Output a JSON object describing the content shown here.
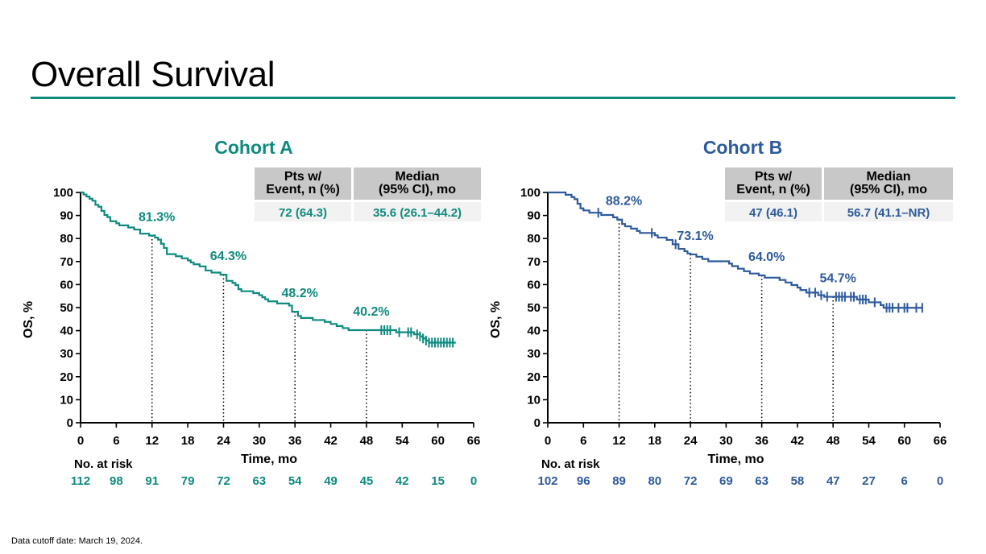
{
  "slide": {
    "title": "Overall Survival",
    "footnote": "Data cutoff date: March 19, 2024.",
    "accent_color": "#0e8a7e"
  },
  "chart_data": [
    {
      "type": "line",
      "subtype": "kaplan-meier",
      "title": "Cohort A",
      "color": "#0e8a7e",
      "xlabel": "Time, mo",
      "ylabel": "OS, %",
      "xlim": [
        0,
        66
      ],
      "ylim": [
        0,
        100
      ],
      "xticks": [
        0,
        6,
        12,
        18,
        24,
        30,
        36,
        42,
        48,
        54,
        60,
        66
      ],
      "yticks": [
        0,
        10,
        20,
        30,
        40,
        50,
        60,
        70,
        80,
        90,
        100
      ],
      "grid": false,
      "table": {
        "headers": [
          "Pts w/\nEvent, n (%)",
          "Median\n(95% CI), mo"
        ],
        "values": [
          "72 (64.3)",
          "35.6 (26.1–44.2)"
        ]
      },
      "landmarks": [
        {
          "x": 12,
          "y": 81.3,
          "label": "81.3%"
        },
        {
          "x": 24,
          "y": 64.3,
          "label": "64.3%"
        },
        {
          "x": 36,
          "y": 48.2,
          "label": "48.2%"
        },
        {
          "x": 48,
          "y": 40.2,
          "label": "40.2%"
        }
      ],
      "risk_label": "No. at risk",
      "at_risk": [
        112,
        98,
        91,
        79,
        72,
        63,
        54,
        49,
        45,
        42,
        15,
        0
      ],
      "curve": [
        [
          0,
          100
        ],
        [
          0.5,
          99.1
        ],
        [
          1,
          98.2
        ],
        [
          1.5,
          97.3
        ],
        [
          2,
          96.4
        ],
        [
          2.5,
          94.6
        ],
        [
          3,
          93.8
        ],
        [
          3.5,
          92.0
        ],
        [
          4,
          90.2
        ],
        [
          4.5,
          89.3
        ],
        [
          5,
          87.5
        ],
        [
          6,
          86.6
        ],
        [
          6.5,
          85.7
        ],
        [
          8,
          84.8
        ],
        [
          9,
          83.9
        ],
        [
          10,
          82.1
        ],
        [
          11.5,
          81.3
        ],
        [
          12.5,
          80.4
        ],
        [
          13,
          79.5
        ],
        [
          13.5,
          77.7
        ],
        [
          14,
          75.9
        ],
        [
          14.5,
          73.2
        ],
        [
          16,
          72.3
        ],
        [
          17,
          71.4
        ],
        [
          18,
          70.5
        ],
        [
          18.5,
          69.6
        ],
        [
          19,
          68.8
        ],
        [
          20,
          67.9
        ],
        [
          21,
          66.1
        ],
        [
          22,
          65.2
        ],
        [
          23.5,
          64.3
        ],
        [
          24.5,
          61.6
        ],
        [
          25.5,
          60.7
        ],
        [
          26,
          59.8
        ],
        [
          26.5,
          58.0
        ],
        [
          27,
          57.1
        ],
        [
          29,
          56.3
        ],
        [
          30,
          55.4
        ],
        [
          30.5,
          54.5
        ],
        [
          31,
          53.6
        ],
        [
          31.5,
          52.7
        ],
        [
          33,
          51.8
        ],
        [
          35,
          50.9
        ],
        [
          35.5,
          48.2
        ],
        [
          36.5,
          46.4
        ],
        [
          37,
          45.5
        ],
        [
          39,
          44.6
        ],
        [
          41,
          43.8
        ],
        [
          42,
          42.9
        ],
        [
          43,
          42.0
        ],
        [
          44,
          41.1
        ],
        [
          45,
          40.2
        ],
        [
          53,
          39.3
        ],
        [
          56,
          38.4
        ],
        [
          57,
          37.5
        ],
        [
          57.5,
          36.6
        ],
        [
          58,
          35.7
        ],
        [
          58.5,
          34.8
        ],
        [
          63,
          34.8
        ]
      ],
      "censor_x": [
        50.5,
        51,
        51.5,
        52,
        53.5,
        55,
        55.5,
        56.5,
        57,
        57.5,
        58,
        58.5,
        59,
        59.5,
        60,
        60.5,
        61,
        61.5,
        62,
        62.5
      ]
    },
    {
      "type": "line",
      "subtype": "kaplan-meier",
      "title": "Cohort B",
      "color": "#2c5a9c",
      "xlabel": "Time, mo",
      "ylabel": "OS, %",
      "xlim": [
        0,
        66
      ],
      "ylim": [
        0,
        100
      ],
      "xticks": [
        0,
        6,
        12,
        18,
        24,
        30,
        36,
        42,
        48,
        54,
        60,
        66
      ],
      "yticks": [
        0,
        10,
        20,
        30,
        40,
        50,
        60,
        70,
        80,
        90,
        100
      ],
      "grid": false,
      "table": {
        "headers": [
          "Pts w/\nEvent, n (%)",
          "Median\n(95% CI), mo"
        ],
        "values": [
          "47 (46.1)",
          "56.7 (41.1–NR)"
        ]
      },
      "landmarks": [
        {
          "x": 12,
          "y": 88.2,
          "label": "88.2%"
        },
        {
          "x": 24,
          "y": 73.1,
          "label": "73.1%"
        },
        {
          "x": 36,
          "y": 64.0,
          "label": "64.0%"
        },
        {
          "x": 48,
          "y": 54.7,
          "label": "54.7%"
        }
      ],
      "risk_label": "No. at risk",
      "at_risk": [
        102,
        96,
        89,
        80,
        72,
        69,
        63,
        58,
        47,
        27,
        6,
        0
      ],
      "curve": [
        [
          0,
          100
        ],
        [
          3,
          99.0
        ],
        [
          4,
          98.0
        ],
        [
          4.5,
          97.1
        ],
        [
          5,
          95.1
        ],
        [
          5.5,
          93.1
        ],
        [
          6,
          92.2
        ],
        [
          7,
          91.2
        ],
        [
          9,
          90.2
        ],
        [
          11,
          89.2
        ],
        [
          11.7,
          88.2
        ],
        [
          12.5,
          86.3
        ],
        [
          13,
          85.3
        ],
        [
          14,
          84.3
        ],
        [
          15,
          83.3
        ],
        [
          15.5,
          82.4
        ],
        [
          18,
          81.4
        ],
        [
          18.5,
          80.4
        ],
        [
          20,
          79.4
        ],
        [
          21,
          77.5
        ],
        [
          22,
          75.5
        ],
        [
          23,
          74.5
        ],
        [
          23.5,
          73.5
        ],
        [
          24,
          73.1
        ],
        [
          25,
          72.1
        ],
        [
          26,
          71.1
        ],
        [
          27,
          70.1
        ],
        [
          30.5,
          69.1
        ],
        [
          31,
          68.0
        ],
        [
          32,
          66.9
        ],
        [
          33,
          65.8
        ],
        [
          34,
          64.8
        ],
        [
          35.5,
          64.0
        ],
        [
          36.5,
          63.0
        ],
        [
          39,
          62.0
        ],
        [
          40,
          60.9
        ],
        [
          41,
          59.8
        ],
        [
          42,
          58.7
        ],
        [
          42.5,
          57.6
        ],
        [
          43.5,
          56.5
        ],
        [
          45.5,
          55.4
        ],
        [
          46.5,
          54.7
        ],
        [
          52,
          53.5
        ],
        [
          54,
          52.3
        ],
        [
          56,
          51.1
        ],
        [
          56.5,
          49.9
        ],
        [
          63,
          49.9
        ]
      ],
      "censor_x": [
        8.5,
        17.5,
        21.5,
        44,
        45,
        46,
        47,
        48.5,
        49,
        49.5,
        50,
        51,
        51.5,
        52.5,
        53,
        53.5,
        55,
        57,
        57.5,
        58,
        59,
        60,
        60.5,
        62,
        63
      ]
    }
  ]
}
